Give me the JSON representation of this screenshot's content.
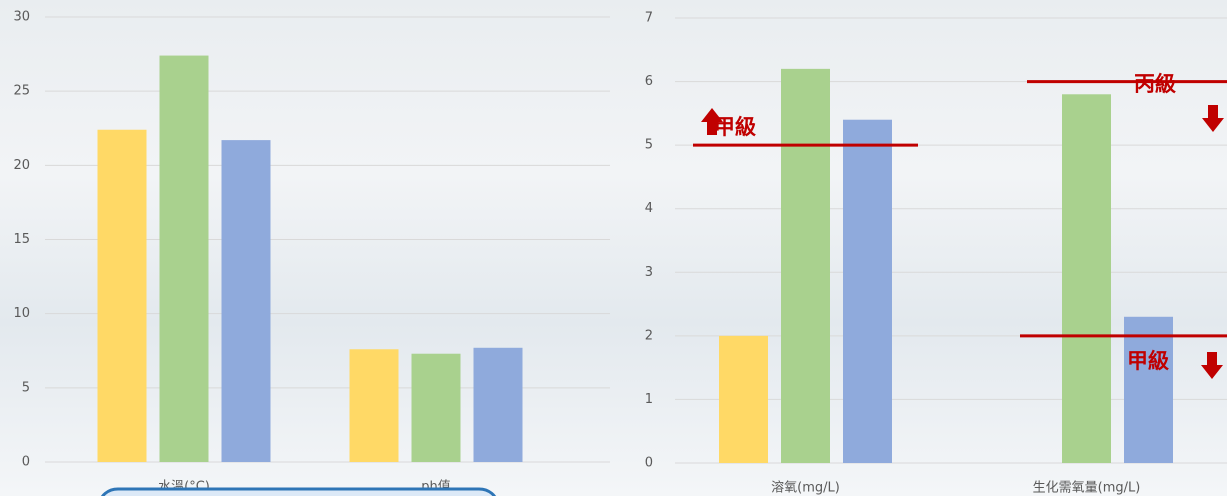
{
  "chart_data": [
    {
      "type": "bar",
      "categories": [
        "水溫(°C)",
        "ph值"
      ],
      "series": [
        {
          "color": "#ffd966",
          "values": [
            22.4,
            7.6
          ]
        },
        {
          "color": "#a9d18e",
          "values": [
            27.4,
            7.3
          ]
        },
        {
          "color": "#8faadc",
          "values": [
            21.7,
            7.7
          ]
        }
      ],
      "ylim": [
        0,
        30
      ],
      "yticks": [
        0,
        5,
        10,
        15,
        20,
        25,
        30
      ],
      "grid": true
    },
    {
      "type": "bar",
      "categories": [
        "溶氧(mg/L)",
        "生化需氧量(mg/L)"
      ],
      "series": [
        {
          "color": "#ffd966",
          "values": [
            2.0,
            null
          ]
        },
        {
          "color": "#a9d18e",
          "values": [
            6.2,
            5.8
          ]
        },
        {
          "color": "#8faadc",
          "values": [
            5.4,
            2.3
          ]
        }
      ],
      "ylim": [
        0,
        7
      ],
      "yticks": [
        0,
        1,
        2,
        3,
        4,
        5,
        6,
        7
      ],
      "grid": true,
      "annotations": [
        {
          "text": "甲級",
          "value": 5,
          "direction": "up",
          "color": "#c00000"
        },
        {
          "text": "丙級",
          "value": 6,
          "direction": "down",
          "color": "#c00000"
        },
        {
          "text": "甲級",
          "value": 2,
          "direction": "down",
          "color": "#c00000"
        }
      ]
    }
  ]
}
